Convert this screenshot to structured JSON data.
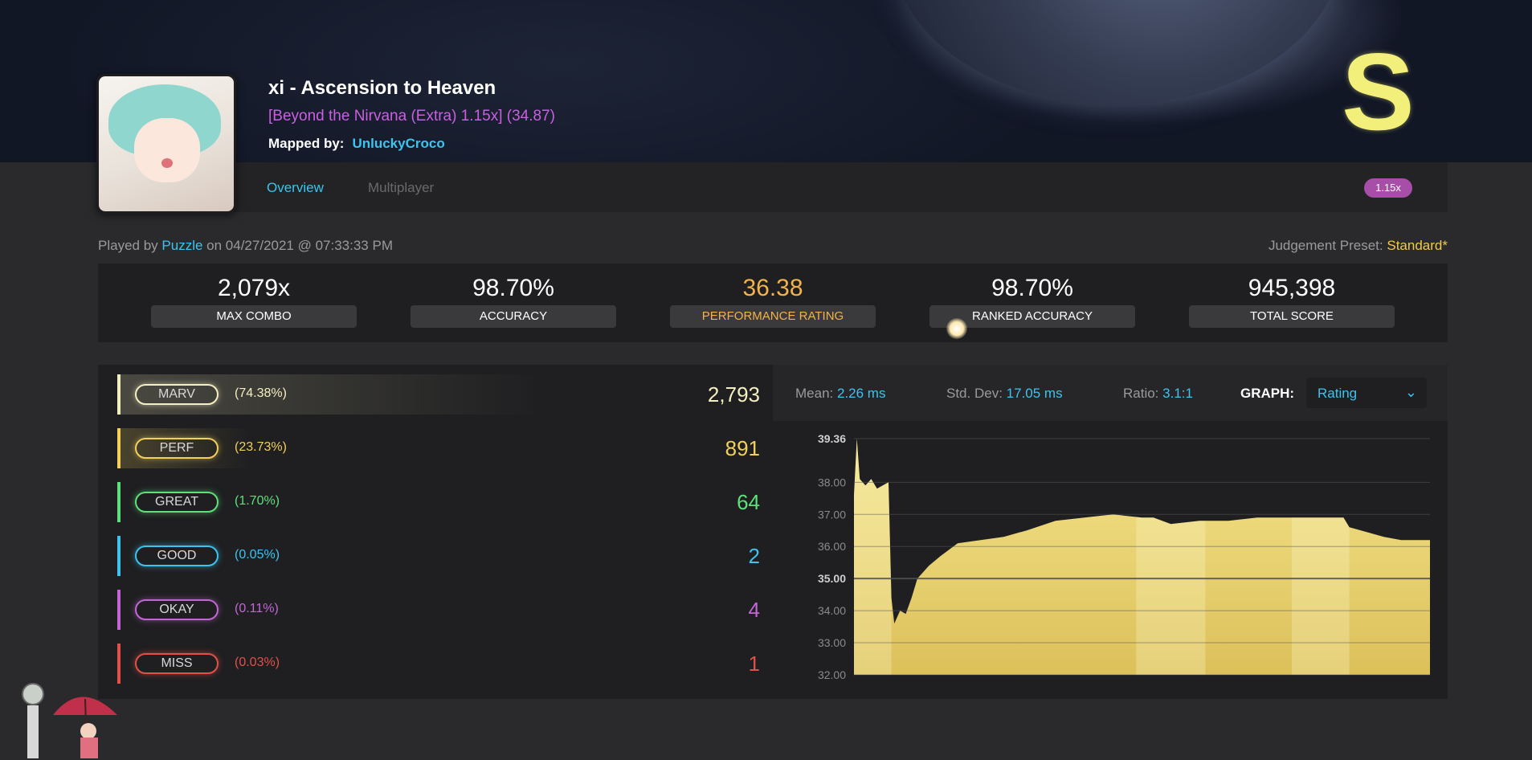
{
  "song": {
    "title": "xi - Ascension to Heaven",
    "difficulty": "[Beyond the Nirvana (Extra) 1.15x] (34.87)",
    "mapped_by_label": "Mapped by:",
    "mapper": "UnluckyCroco"
  },
  "tabs": [
    {
      "label": "Overview"
    },
    {
      "label": "Multiplayer"
    }
  ],
  "grade": "S",
  "rate": "1.15x",
  "played": {
    "prefix": "Played by",
    "player": "Puzzle",
    "date": "on 04/27/2021 @ 07:33:33 PM"
  },
  "preset": {
    "label": "Judgement Preset:",
    "value": "Standard*"
  },
  "stats": [
    {
      "value": "2,079x",
      "label": "MAX COMBO"
    },
    {
      "value": "98.70%",
      "label": "ACCURACY"
    },
    {
      "value": "36.38",
      "label": "PERFORMANCE RATING"
    },
    {
      "value": "98.70%",
      "label": "RANKED ACCURACY"
    },
    {
      "value": "945,398",
      "label": "TOTAL SCORE"
    }
  ],
  "judgements": [
    {
      "name": "MARV",
      "percent": "(74.38%)",
      "count": "2,793",
      "color": "#f4efc0"
    },
    {
      "name": "PERF",
      "percent": "(23.73%)",
      "count": "891",
      "color": "#f2d05a"
    },
    {
      "name": "GREAT",
      "percent": "(1.70%)",
      "count": "64",
      "color": "#5ee07a"
    },
    {
      "name": "GOOD",
      "percent": "(0.05%)",
      "count": "2",
      "color": "#3cc4ef"
    },
    {
      "name": "OKAY",
      "percent": "(0.11%)",
      "count": "4",
      "color": "#c266d6"
    },
    {
      "name": "MISS",
      "percent": "(0.03%)",
      "count": "1",
      "color": "#e2504a"
    }
  ],
  "graph": {
    "mean_label": "Mean:",
    "mean_value": "2.26 ms",
    "std_label": "Std. Dev:",
    "std_value": "17.05 ms",
    "ratio_label": "Ratio:",
    "ratio_value": "3.1:1",
    "graph_label": "GRAPH:",
    "graph_selected": "Rating"
  },
  "chart_data": {
    "type": "area",
    "y_ticks": [
      "39.36",
      "38.00",
      "37.00",
      "36.00",
      "35.00",
      "34.00",
      "33.00",
      "32.00"
    ],
    "ylim": [
      32.0,
      39.36
    ],
    "x": [
      0,
      0.5,
      1,
      2,
      3,
      4,
      5,
      6,
      6.5,
      7,
      8,
      9,
      10,
      11,
      13,
      15,
      18,
      22,
      26,
      30,
      35,
      40,
      45,
      50,
      52,
      55,
      60,
      62,
      65,
      70,
      75,
      80,
      85,
      86,
      88,
      92,
      95,
      97,
      100
    ],
    "values": [
      37.6,
      39.36,
      38.1,
      37.9,
      38.1,
      37.8,
      37.9,
      38.0,
      34.4,
      33.6,
      34.0,
      33.9,
      34.4,
      35.0,
      35.4,
      35.7,
      36.1,
      36.2,
      36.3,
      36.5,
      36.8,
      36.9,
      37.0,
      36.9,
      36.9,
      36.7,
      36.8,
      36.8,
      36.8,
      36.9,
      36.9,
      36.9,
      36.9,
      36.6,
      36.5,
      36.3,
      36.2,
      36.2,
      36.2
    ],
    "highlight_bands": [
      [
        0,
        6.5
      ],
      [
        49,
        61
      ],
      [
        76,
        86
      ]
    ],
    "grid": true
  }
}
